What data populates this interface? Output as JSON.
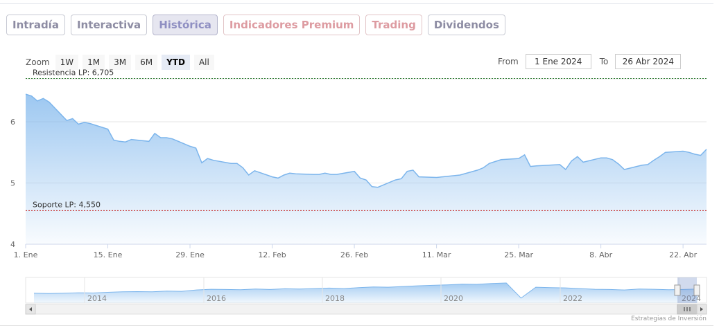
{
  "tabs": [
    {
      "label": "Intradía",
      "state": "normal"
    },
    {
      "label": "Interactiva",
      "state": "normal"
    },
    {
      "label": "Histórica",
      "state": "active"
    },
    {
      "label": "Indicadores Premium",
      "state": "premium"
    },
    {
      "label": "Trading",
      "state": "premium"
    },
    {
      "label": "Dividendos",
      "state": "normal"
    }
  ],
  "zoom": {
    "label": "Zoom",
    "buttons": [
      "1W",
      "1M",
      "3M",
      "6M",
      "YTD",
      "All"
    ],
    "selected": "YTD"
  },
  "range": {
    "from_label": "From",
    "from_value": "1 Ene 2024",
    "to_label": "To",
    "to_value": "26 Abr 2024"
  },
  "chart_data": {
    "type": "area",
    "title": "",
    "xlabel": "",
    "ylabel": "",
    "ylim": [
      4,
      6.7
    ],
    "yticks": [
      4,
      5,
      6
    ],
    "ytick_labels": [
      "4",
      "5",
      "6"
    ],
    "xlim": [
      "2024-01-01",
      "2024-04-26"
    ],
    "xticks": [
      {
        "x": "2024-01-01",
        "label": "1. Ene"
      },
      {
        "x": "2024-01-15",
        "label": "15. Ene"
      },
      {
        "x": "2024-01-29",
        "label": "29. Ene"
      },
      {
        "x": "2024-02-12",
        "label": "12. Feb"
      },
      {
        "x": "2024-02-26",
        "label": "26. Feb"
      },
      {
        "x": "2024-03-11",
        "label": "11. Mar"
      },
      {
        "x": "2024-03-25",
        "label": "25. Mar"
      },
      {
        "x": "2024-04-08",
        "label": "8. Abr"
      },
      {
        "x": "2024-04-22",
        "label": "22. Abr"
      }
    ],
    "grid": true,
    "series": [
      {
        "x": [
          "2024-01-01",
          "2024-01-02",
          "2024-01-03",
          "2024-01-04",
          "2024-01-05",
          "2024-01-08",
          "2024-01-09",
          "2024-01-10",
          "2024-01-11",
          "2024-01-12",
          "2024-01-15",
          "2024-01-16",
          "2024-01-17",
          "2024-01-18",
          "2024-01-19",
          "2024-01-22",
          "2024-01-23",
          "2024-01-24",
          "2024-01-25",
          "2024-01-26",
          "2024-01-29",
          "2024-01-30",
          "2024-01-31",
          "2024-02-01",
          "2024-02-02",
          "2024-02-05",
          "2024-02-06",
          "2024-02-07",
          "2024-02-08",
          "2024-02-09",
          "2024-02-12",
          "2024-02-13",
          "2024-02-14",
          "2024-02-15",
          "2024-02-16",
          "2024-02-19",
          "2024-02-20",
          "2024-02-21",
          "2024-02-22",
          "2024-02-23",
          "2024-02-26",
          "2024-02-27",
          "2024-02-28",
          "2024-02-29",
          "2024-03-01",
          "2024-03-04",
          "2024-03-05",
          "2024-03-06",
          "2024-03-07",
          "2024-03-08",
          "2024-03-11",
          "2024-03-12",
          "2024-03-13",
          "2024-03-14",
          "2024-03-15",
          "2024-03-18",
          "2024-03-19",
          "2024-03-20",
          "2024-03-21",
          "2024-03-22",
          "2024-03-25",
          "2024-03-26",
          "2024-03-27",
          "2024-03-28",
          "2024-04-01",
          "2024-04-02",
          "2024-04-03",
          "2024-04-04",
          "2024-04-05",
          "2024-04-08",
          "2024-04-09",
          "2024-04-10",
          "2024-04-11",
          "2024-04-12",
          "2024-04-15",
          "2024-04-16",
          "2024-04-17",
          "2024-04-18",
          "2024-04-19",
          "2024-04-22",
          "2024-04-23",
          "2024-04-24",
          "2024-04-25",
          "2024-04-26"
        ],
        "values": [
          6.45,
          6.42,
          6.34,
          6.38,
          6.32,
          6.02,
          6.05,
          5.96,
          5.99,
          5.97,
          5.88,
          5.7,
          5.68,
          5.67,
          5.71,
          5.68,
          5.81,
          5.74,
          5.74,
          5.72,
          5.6,
          5.57,
          5.33,
          5.4,
          5.37,
          5.32,
          5.32,
          5.25,
          5.13,
          5.2,
          5.1,
          5.08,
          5.13,
          5.16,
          5.15,
          5.14,
          5.14,
          5.16,
          5.14,
          5.14,
          5.19,
          5.08,
          5.05,
          4.94,
          4.93,
          5.05,
          5.07,
          5.19,
          5.21,
          5.1,
          5.09,
          5.1,
          5.11,
          5.12,
          5.13,
          5.21,
          5.25,
          5.32,
          5.35,
          5.38,
          5.4,
          5.46,
          5.27,
          5.28,
          5.3,
          5.22,
          5.36,
          5.43,
          5.34,
          5.41,
          5.41,
          5.38,
          5.31,
          5.22,
          5.29,
          5.3,
          5.37,
          5.43,
          5.5,
          5.52,
          5.5,
          5.47,
          5.45,
          5.55
        ]
      }
    ],
    "plot_lines": [
      {
        "value": 6.705,
        "label": "Resistencia LP: 6,705",
        "color": "#2e7d32"
      },
      {
        "value": 4.55,
        "label": "Soporte LP: 4,550",
        "color": "#c62828"
      }
    ],
    "colors": {
      "line": "#7cb5ec",
      "fill_top": "#7cb5ec",
      "grid": "#e6e6e6",
      "axis": "#ccd6eb"
    },
    "navigator": {
      "year_labels": [
        "2014",
        "2016",
        "2018",
        "2020",
        "2022",
        "2024"
      ],
      "values": [
        0.56,
        0.55,
        0.56,
        0.58,
        0.57,
        0.6,
        0.62,
        0.63,
        0.62,
        0.65,
        0.64,
        0.7,
        0.73,
        0.72,
        0.71,
        0.74,
        0.72,
        0.75,
        0.74,
        0.76,
        0.78,
        0.76,
        0.8,
        0.83,
        0.82,
        0.85,
        0.88,
        0.9,
        0.92,
        0.95,
        0.94,
        0.98,
        1.0,
        0.35,
        0.82,
        0.8,
        0.79,
        0.76,
        0.73,
        0.72,
        0.7,
        0.74,
        0.73,
        0.71,
        0.72,
        0.74
      ]
    },
    "credits": "Estrategias de Inversión"
  }
}
